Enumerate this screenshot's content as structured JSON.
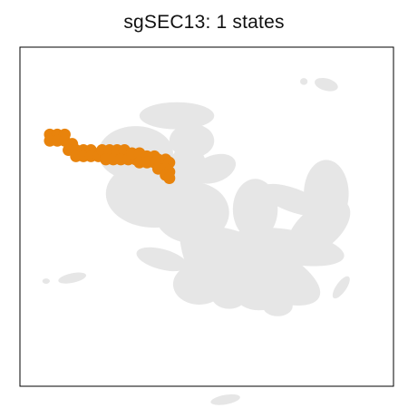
{
  "chart_data": {
    "type": "scatter",
    "title": "sgSEC13: 1 states",
    "xlabel": "",
    "ylabel": "",
    "grid": false,
    "legend": "none",
    "colors": {
      "background_cells": "#e6e6e6",
      "highlight": "#e8830c",
      "frame": "#000000"
    },
    "series": [
      {
        "name": "",
        "role": "background",
        "color": "#e6e6e6",
        "blobs": [
          {
            "cx": 0.62,
            "cy": 0.7,
            "rx": 0.2,
            "ry": 0.08,
            "rot": 25
          },
          {
            "cx": 0.72,
            "cy": 0.64,
            "rx": 0.15,
            "ry": 0.05,
            "rot": 10
          },
          {
            "cx": 0.8,
            "cy": 0.58,
            "rx": 0.1,
            "ry": 0.06,
            "rot": -40
          },
          {
            "cx": 0.82,
            "cy": 0.47,
            "rx": 0.06,
            "ry": 0.1,
            "rot": 0
          },
          {
            "cx": 0.73,
            "cy": 0.49,
            "rx": 0.09,
            "ry": 0.035,
            "rot": 20
          },
          {
            "cx": 0.63,
            "cy": 0.52,
            "rx": 0.06,
            "ry": 0.09,
            "rot": 0
          },
          {
            "cx": 0.46,
            "cy": 0.53,
            "rx": 0.1,
            "ry": 0.09,
            "rot": 0
          },
          {
            "cx": 0.36,
            "cy": 0.47,
            "rx": 0.13,
            "ry": 0.1,
            "rot": 0
          },
          {
            "cx": 0.31,
            "cy": 0.34,
            "rx": 0.1,
            "ry": 0.08,
            "rot": 0
          },
          {
            "cx": 0.46,
            "cy": 0.3,
            "rx": 0.06,
            "ry": 0.05,
            "rot": 0
          },
          {
            "cx": 0.42,
            "cy": 0.22,
            "rx": 0.1,
            "ry": 0.04,
            "rot": 0
          },
          {
            "cx": 0.45,
            "cy": 0.39,
            "rx": 0.05,
            "ry": 0.07,
            "rot": 0
          },
          {
            "cx": 0.52,
            "cy": 0.39,
            "rx": 0.06,
            "ry": 0.04,
            "rot": -20
          },
          {
            "cx": 0.46,
            "cy": 0.63,
            "rx": 0.03,
            "ry": 0.1,
            "rot": -10
          },
          {
            "cx": 0.38,
            "cy": 0.68,
            "rx": 0.07,
            "ry": 0.03,
            "rot": 15
          },
          {
            "cx": 0.48,
            "cy": 0.76,
            "rx": 0.07,
            "ry": 0.06,
            "rot": 0
          },
          {
            "cx": 0.56,
            "cy": 0.79,
            "rx": 0.05,
            "ry": 0.045,
            "rot": 0
          },
          {
            "cx": 0.64,
            "cy": 0.8,
            "rx": 0.06,
            "ry": 0.04,
            "rot": 0
          },
          {
            "cx": 0.69,
            "cy": 0.83,
            "rx": 0.04,
            "ry": 0.03,
            "rot": 0
          },
          {
            "cx": 0.86,
            "cy": 0.77,
            "rx": 0.035,
            "ry": 0.015,
            "rot": -55
          },
          {
            "cx": 0.14,
            "cy": 0.74,
            "rx": 0.038,
            "ry": 0.014,
            "rot": -12
          },
          {
            "cx": 0.53,
            "cy": 0.73,
            "rx": 0.025,
            "ry": 0.02,
            "rot": 0
          },
          {
            "cx": 0.55,
            "cy": 1.13,
            "rx": 0.04,
            "ry": 0.014,
            "rot": -10
          },
          {
            "cx": 0.82,
            "cy": 0.12,
            "rx": 0.032,
            "ry": 0.018,
            "rot": 15
          },
          {
            "cx": 0.76,
            "cy": 0.11,
            "rx": 0.01,
            "ry": 0.01,
            "rot": 0
          },
          {
            "cx": 0.07,
            "cy": 0.75,
            "rx": 0.01,
            "ry": 0.008,
            "rot": 0
          }
        ]
      },
      {
        "name": "",
        "role": "highlight",
        "color": "#e8830c",
        "points": [
          [
            0.08,
            0.28
          ],
          [
            0.1,
            0.28
          ],
          [
            0.12,
            0.28
          ],
          [
            0.08,
            0.3
          ],
          [
            0.1,
            0.3
          ],
          [
            0.12,
            0.3
          ],
          [
            0.14,
            0.31
          ],
          [
            0.13,
            0.33
          ],
          [
            0.15,
            0.33
          ],
          [
            0.17,
            0.33
          ],
          [
            0.19,
            0.33
          ],
          [
            0.15,
            0.35
          ],
          [
            0.17,
            0.35
          ],
          [
            0.19,
            0.35
          ],
          [
            0.21,
            0.35
          ],
          [
            0.23,
            0.35
          ],
          [
            0.22,
            0.33
          ],
          [
            0.24,
            0.33
          ],
          [
            0.26,
            0.33
          ],
          [
            0.28,
            0.33
          ],
          [
            0.23,
            0.36
          ],
          [
            0.25,
            0.36
          ],
          [
            0.27,
            0.36
          ],
          [
            0.29,
            0.36
          ],
          [
            0.31,
            0.36
          ],
          [
            0.3,
            0.34
          ],
          [
            0.32,
            0.34
          ],
          [
            0.34,
            0.35
          ],
          [
            0.36,
            0.35
          ],
          [
            0.32,
            0.37
          ],
          [
            0.34,
            0.37
          ],
          [
            0.36,
            0.37
          ],
          [
            0.38,
            0.37
          ],
          [
            0.37,
            0.36
          ],
          [
            0.39,
            0.36
          ],
          [
            0.4,
            0.37
          ],
          [
            0.37,
            0.39
          ],
          [
            0.39,
            0.39
          ],
          [
            0.4,
            0.4
          ],
          [
            0.39,
            0.41
          ],
          [
            0.4,
            0.42
          ]
        ]
      }
    ]
  }
}
